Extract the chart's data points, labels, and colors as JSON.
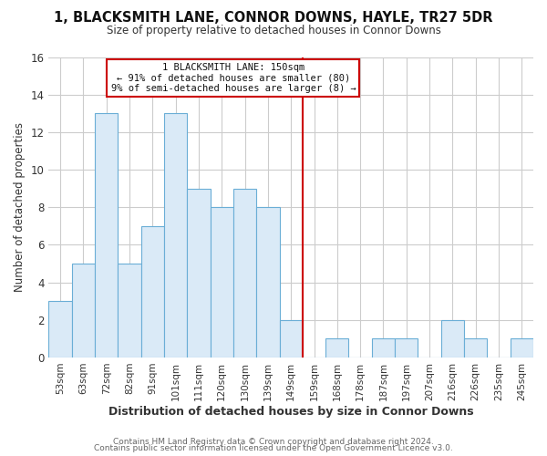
{
  "title": "1, BLACKSMITH LANE, CONNOR DOWNS, HAYLE, TR27 5DR",
  "subtitle": "Size of property relative to detached houses in Connor Downs",
  "xlabel": "Distribution of detached houses by size in Connor Downs",
  "ylabel": "Number of detached properties",
  "bin_labels": [
    "53sqm",
    "63sqm",
    "72sqm",
    "82sqm",
    "91sqm",
    "101sqm",
    "111sqm",
    "120sqm",
    "130sqm",
    "139sqm",
    "149sqm",
    "159sqm",
    "168sqm",
    "178sqm",
    "187sqm",
    "197sqm",
    "207sqm",
    "216sqm",
    "226sqm",
    "235sqm",
    "245sqm"
  ],
  "bar_heights": [
    3,
    5,
    13,
    5,
    7,
    13,
    9,
    8,
    9,
    8,
    2,
    0,
    1,
    0,
    1,
    1,
    0,
    2,
    1,
    0,
    1
  ],
  "bar_color": "#daeaf7",
  "bar_edge_color": "#6aaed6",
  "grid_color": "#cccccc",
  "background_color": "#ffffff",
  "marker_label": "1 BLACKSMITH LANE: 150sqm",
  "marker_line1": "← 91% of detached houses are smaller (80)",
  "marker_line2": "9% of semi-detached houses are larger (8) →",
  "marker_color": "#cc0000",
  "ylim": [
    0,
    16
  ],
  "yticks": [
    0,
    2,
    4,
    6,
    8,
    10,
    12,
    14,
    16
  ],
  "footer1": "Contains HM Land Registry data © Crown copyright and database right 2024.",
  "footer2": "Contains public sector information licensed under the Open Government Licence v3.0."
}
